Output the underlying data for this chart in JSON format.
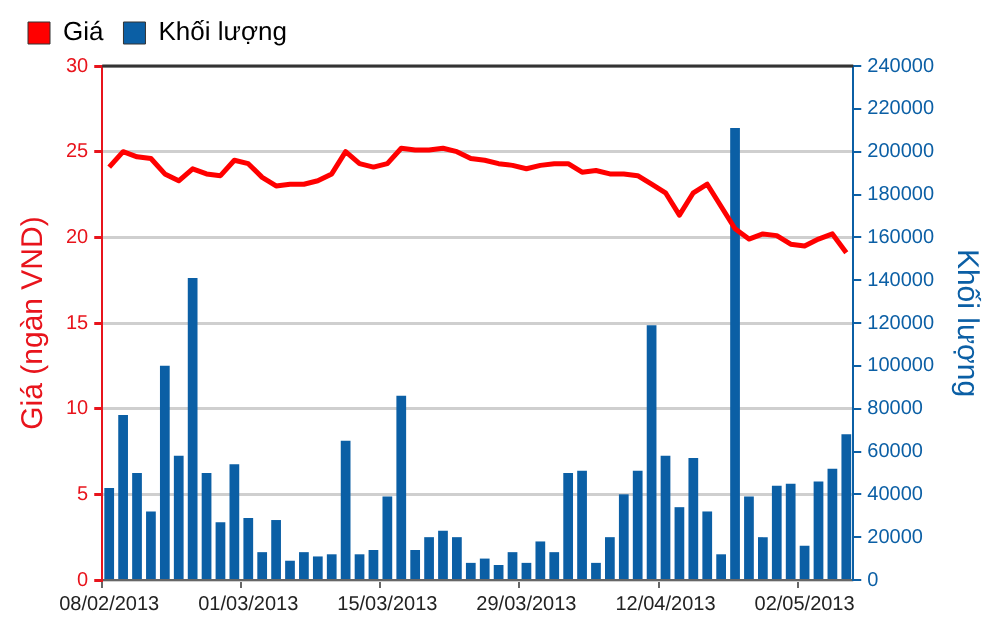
{
  "chart_data": {
    "type": "bar",
    "ylabel": "Giá (ngàn VND)",
    "y2label": "Khối lượng",
    "categories": [
      "08/02/2013",
      null,
      null,
      null,
      null,
      null,
      null,
      null,
      null,
      null,
      "01/03/2013",
      null,
      null,
      null,
      null,
      null,
      null,
      null,
      null,
      null,
      "15/03/2013",
      null,
      null,
      null,
      null,
      null,
      null,
      null,
      null,
      null,
      "29/03/2013",
      null,
      null,
      null,
      null,
      null,
      null,
      null,
      null,
      null,
      "12/04/2013",
      null,
      null,
      null,
      null,
      null,
      null,
      null,
      null,
      null,
      "02/05/2013",
      null,
      null,
      null
    ],
    "series": [
      {
        "name": "Khối lượng",
        "axis": "y2",
        "color": "#0b5fa5",
        "values": [
          43000,
          77000,
          50000,
          32000,
          100000,
          58000,
          141000,
          50000,
          27000,
          54000,
          29000,
          13000,
          28000,
          9000,
          13000,
          11000,
          12000,
          65000,
          12000,
          14000,
          39000,
          86000,
          14000,
          20000,
          23000,
          20000,
          8000,
          10000,
          7000,
          13000,
          8000,
          18000,
          13000,
          50000,
          51000,
          8000,
          20000,
          40000,
          51000,
          119000,
          58000,
          34000,
          57000,
          32000,
          12000,
          211000,
          39000,
          20000,
          44000,
          45000,
          16000,
          46000,
          52000,
          68000
        ]
      },
      {
        "name": "Giá",
        "type": "line",
        "color": "#ff0000",
        "values": [
          24.1,
          25,
          24.7,
          24.6,
          23.7,
          23.3,
          24,
          23.7,
          23.6,
          24.5,
          24.3,
          23.5,
          23,
          23.1,
          23.1,
          23.3,
          23.7,
          25,
          24.3,
          24.1,
          24.3,
          25.2,
          25.1,
          25.1,
          25.2,
          25,
          24.6,
          24.5,
          24.3,
          24.2,
          24,
          24.2,
          24.3,
          24.3,
          23.8,
          23.9,
          23.7,
          23.7,
          23.6,
          23.1,
          22.6,
          21.3,
          22.6,
          23.1,
          21.8,
          20.5,
          19.9,
          20.2,
          20.1,
          19.6,
          19.5,
          19.9,
          20.2,
          19.1
        ]
      }
    ],
    "ylim": [
      0,
      30
    ],
    "yticks": [
      0,
      5,
      10,
      15,
      20,
      25,
      30
    ],
    "y2lim": [
      0,
      240000
    ],
    "y2ticks": [
      0,
      20000,
      40000,
      60000,
      80000,
      100000,
      120000,
      140000,
      160000,
      180000,
      200000,
      220000,
      240000
    ],
    "grid": "y",
    "legend": "top left"
  }
}
